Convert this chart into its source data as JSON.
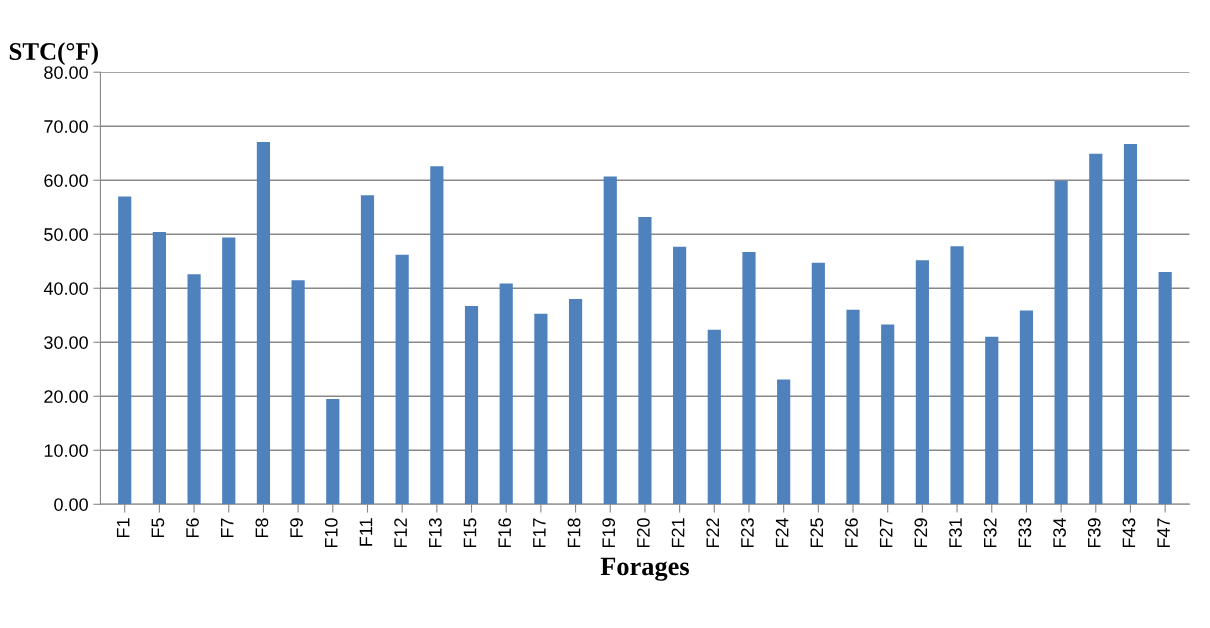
{
  "chart_data": {
    "type": "bar",
    "ylabel": "STC(°F)",
    "xlabel": "Forages",
    "categories": [
      "F1",
      "F5",
      "F6",
      "F7",
      "F8",
      "F9",
      "F10",
      "F11",
      "F12",
      "F13",
      "F15",
      "F16",
      "F17",
      "F18",
      "F19",
      "F20",
      "F21",
      "F22",
      "F23",
      "F24",
      "F25",
      "F26",
      "F27",
      "F29",
      "F31",
      "F32",
      "F33",
      "F34",
      "F39",
      "F43",
      "F47"
    ],
    "values": [
      57.0,
      50.4,
      42.6,
      49.4,
      67.1,
      41.5,
      19.5,
      57.2,
      46.2,
      62.6,
      36.7,
      40.9,
      35.3,
      38.0,
      60.7,
      53.2,
      47.7,
      32.3,
      46.7,
      23.1,
      44.7,
      36.0,
      33.3,
      45.2,
      47.8,
      31.0,
      35.9,
      59.9,
      64.9,
      66.7,
      43.0
    ],
    "color": "#4f81bd",
    "ylim": [
      0,
      80
    ],
    "yticks": [
      {
        "value": 0,
        "label": "0.00"
      },
      {
        "value": 10,
        "label": "10.00"
      },
      {
        "value": 20,
        "label": "20.00"
      },
      {
        "value": 30,
        "label": "30.00"
      },
      {
        "value": 40,
        "label": "40.00"
      },
      {
        "value": 50,
        "label": "50.00"
      },
      {
        "value": 60,
        "label": "60.00"
      },
      {
        "value": 70,
        "label": "70.00"
      },
      {
        "value": 80,
        "label": "80.00"
      }
    ],
    "grid": "y"
  }
}
